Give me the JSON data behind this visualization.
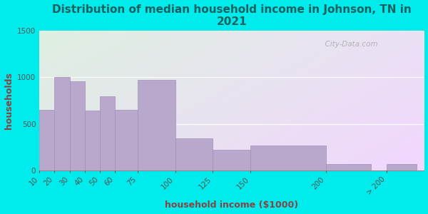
{
  "title": "Distribution of median household income in Johnson, TN in\n2021",
  "xlabel": "household income ($1000)",
  "ylabel": "households",
  "categories": [
    "10",
    "20",
    "30",
    "40",
    "50",
    "60",
    "75",
    "100",
    "125",
    "150",
    "200",
    "> 200"
  ],
  "values": [
    650,
    1000,
    960,
    640,
    800,
    650,
    970,
    340,
    220,
    270,
    65,
    65
  ],
  "bar_color": "#b8a8cc",
  "bar_edge_color": "#a090bb",
  "ylim": [
    0,
    1500
  ],
  "yticks": [
    0,
    500,
    1000,
    1500
  ],
  "background_outer": "#00ecec",
  "background_inner_top_left": "#dff0d8",
  "background_inner_top_right": "#e8f4f8",
  "background_inner_bottom": "#d0e8f0",
  "title_color": "#1a6060",
  "axis_label_color": "#884444",
  "tick_color": "#555555",
  "title_fontsize": 11,
  "axis_label_fontsize": 9,
  "watermark": "  City-Data.com"
}
